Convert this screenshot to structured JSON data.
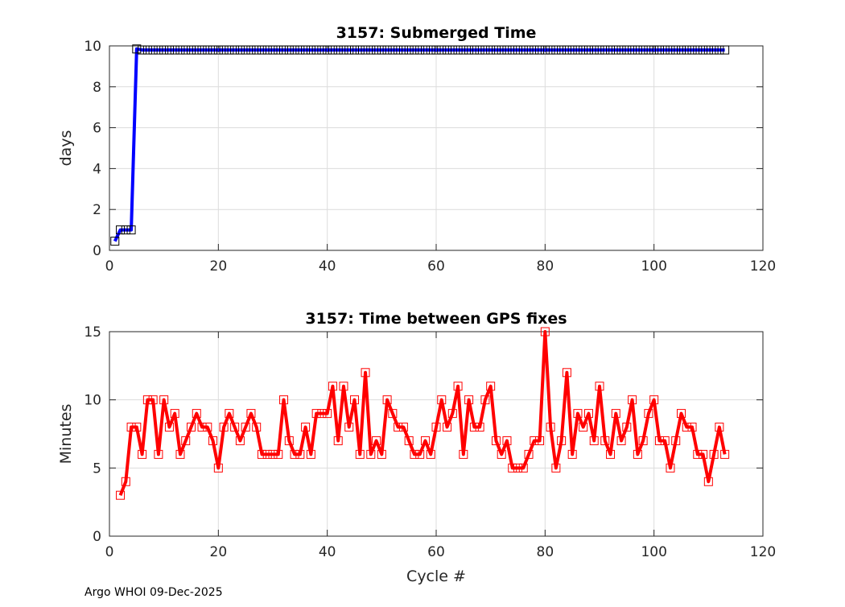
{
  "chart_data": [
    {
      "type": "line",
      "title": "3157: Submerged Time",
      "xlabel": "",
      "ylabel": "days",
      "xlim": [
        0,
        120
      ],
      "ylim": [
        0,
        10
      ],
      "xticks": [
        "0",
        "20",
        "40",
        "60",
        "80",
        "100",
        "120"
      ],
      "yticks": [
        "0",
        "2",
        "4",
        "6",
        "8",
        "10"
      ],
      "grid": true,
      "color": "#0000ff",
      "marker_color": "#000000",
      "x_start": 1,
      "values": [
        0.45,
        1.0,
        1.0,
        1.0,
        9.85,
        9.8,
        9.8,
        9.8,
        9.8,
        9.8,
        9.8,
        9.8,
        9.8,
        9.8,
        9.8,
        9.8,
        9.8,
        9.8,
        9.8,
        9.8,
        9.8,
        9.8,
        9.8,
        9.8,
        9.8,
        9.8,
        9.8,
        9.8,
        9.8,
        9.8,
        9.8,
        9.8,
        9.8,
        9.8,
        9.8,
        9.8,
        9.8,
        9.8,
        9.8,
        9.8,
        9.8,
        9.8,
        9.8,
        9.8,
        9.8,
        9.8,
        9.8,
        9.8,
        9.8,
        9.8,
        9.8,
        9.8,
        9.8,
        9.8,
        9.8,
        9.8,
        9.8,
        9.8,
        9.8,
        9.8,
        9.8,
        9.8,
        9.8,
        9.8,
        9.8,
        9.8,
        9.8,
        9.8,
        9.8,
        9.8,
        9.8,
        9.8,
        9.8,
        9.8,
        9.8,
        9.8,
        9.8,
        9.8,
        9.8,
        9.8,
        9.8,
        9.8,
        9.8,
        9.8,
        9.8,
        9.8,
        9.8,
        9.8,
        9.8,
        9.8,
        9.8,
        9.8,
        9.8,
        9.8,
        9.8,
        9.8,
        9.8,
        9.8,
        9.8,
        9.8,
        9.8,
        9.8,
        9.8,
        9.8,
        9.8,
        9.8,
        9.8,
        9.8,
        9.8,
        9.8,
        9.8,
        9.8,
        9.8
      ]
    },
    {
      "type": "line",
      "title": "3157: Time between GPS fixes",
      "xlabel": "Cycle #",
      "ylabel": "Minutes",
      "xlim": [
        0,
        120
      ],
      "ylim": [
        0,
        15
      ],
      "xticks": [
        "0",
        "20",
        "40",
        "60",
        "80",
        "100",
        "120"
      ],
      "yticks": [
        "0",
        "5",
        "10",
        "15"
      ],
      "grid": true,
      "color": "#ff0000",
      "marker_color": "#ff0000",
      "x_start": 2,
      "values": [
        3,
        4,
        8,
        8,
        6,
        10,
        10,
        6,
        10,
        8,
        9,
        6,
        7,
        8,
        9,
        8,
        8,
        7,
        5,
        8,
        9,
        8,
        7,
        8,
        9,
        8,
        6,
        6,
        6,
        6,
        10,
        7,
        6,
        6,
        8,
        6,
        9,
        9,
        9,
        11,
        7,
        11,
        8,
        10,
        6,
        12,
        6,
        7,
        6,
        10,
        9,
        8,
        8,
        7,
        6,
        6,
        7,
        6,
        8,
        10,
        8,
        9,
        11,
        6,
        10,
        8,
        8,
        10,
        11,
        7,
        6,
        7,
        5,
        5,
        5,
        6,
        7,
        7,
        15,
        8,
        5,
        7,
        12,
        6,
        9,
        8,
        9,
        7,
        11,
        7,
        6,
        9,
        7,
        8,
        10,
        6,
        7,
        9,
        10,
        7,
        7,
        5,
        7,
        9,
        8,
        8,
        6,
        6,
        4,
        6,
        8,
        6
      ]
    }
  ],
  "footer": "Argo WHOI 09-Dec-2025"
}
